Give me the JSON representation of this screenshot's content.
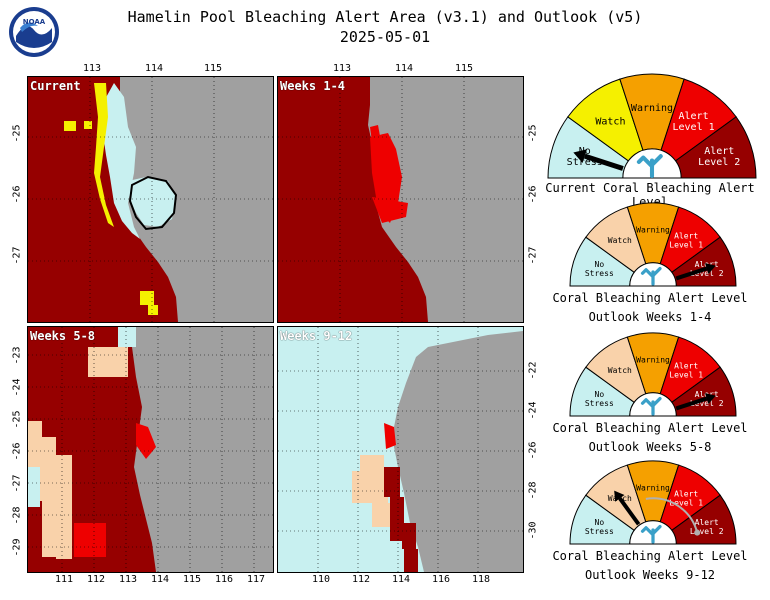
{
  "header": {
    "title": "Hamelin Pool Bleaching Alert Area (v3.1) and Outlook (v5)",
    "date": "2025-05-01"
  },
  "logo": {
    "text": "NOAA",
    "icon": "noaa-logo"
  },
  "colors": {
    "no_stress": "#c8f0f0",
    "watch": "#f5f000",
    "warning": "#f5a000",
    "alert1": "#ee0000",
    "alert2": "#960000",
    "watch_outlook": "#f9d2aa",
    "land": "#a0a0a0",
    "background": "#ffffff"
  },
  "panels": [
    {
      "id": "current",
      "label": "Current",
      "top_ticks": [
        "113",
        "114",
        "115"
      ],
      "right_ticks": [],
      "left_ticks": [
        "-25",
        "-26",
        "-27"
      ],
      "bottom_ticks": []
    },
    {
      "id": "weeks1-4",
      "label": "Weeks 1-4",
      "top_ticks": [
        "113",
        "114",
        "115"
      ],
      "right_ticks": [
        "-25",
        "-26",
        "-27"
      ],
      "left_ticks": [],
      "bottom_ticks": []
    },
    {
      "id": "weeks5-8",
      "label": "Weeks 5-8",
      "top_ticks": [],
      "right_ticks": [],
      "left_ticks": [
        "-23",
        "-24",
        "-25",
        "-26",
        "-27",
        "-28",
        "-29"
      ],
      "bottom_ticks": [
        "111",
        "112",
        "113",
        "114",
        "115",
        "116",
        "117"
      ]
    },
    {
      "id": "weeks9-12",
      "label": "Weeks 9-12",
      "top_ticks": [],
      "right_ticks": [
        "-22",
        "-24",
        "-26",
        "-28",
        "-30"
      ],
      "left_ticks": [],
      "bottom_ticks": [
        "110",
        "112",
        "114",
        "116",
        "118"
      ]
    }
  ],
  "gauges": [
    {
      "id": "current",
      "caption_lines": [
        "Current Coral Bleaching Alert Level"
      ],
      "level": "No Stress",
      "labels": {
        "no_stress": [
          "No",
          "Stress"
        ],
        "watch": [
          "Watch"
        ],
        "warning": [
          "Warning"
        ],
        "alert1": [
          "Alert",
          "Level 1"
        ],
        "alert2": [
          "Alert",
          "Level 2"
        ]
      }
    },
    {
      "id": "weeks1-4",
      "caption_lines": [
        "Coral Bleaching Alert Level",
        "Outlook Weeks 1-4"
      ],
      "level": "Alert Level 2",
      "labels": {
        "no_stress": [
          "No",
          "Stress"
        ],
        "watch": [
          "Watch"
        ],
        "warning": [
          "Warning"
        ],
        "alert1": [
          "Alert",
          "Level 1"
        ],
        "alert2": [
          "Alert",
          "Level 2"
        ]
      }
    },
    {
      "id": "weeks5-8",
      "caption_lines": [
        "Coral Bleaching Alert Level",
        "Outlook Weeks 5-8"
      ],
      "level": "Alert Level 2",
      "labels": {
        "no_stress": [
          "No",
          "Stress"
        ],
        "watch": [
          "Watch"
        ],
        "warning": [
          "Warning"
        ],
        "alert1": [
          "Alert",
          "Level 1"
        ],
        "alert2": [
          "Alert",
          "Level 2"
        ]
      }
    },
    {
      "id": "weeks9-12",
      "caption_lines": [
        "Coral Bleaching Alert Level",
        "Outlook Weeks 9-12"
      ],
      "level": "Watch",
      "labels": {
        "no_stress": [
          "No",
          "Stress"
        ],
        "watch": [
          "Watch"
        ],
        "warning": [
          "Warning"
        ],
        "alert1": [
          "Alert",
          "Level 1"
        ],
        "alert2": [
          "Alert",
          "Level 2"
        ]
      }
    }
  ]
}
